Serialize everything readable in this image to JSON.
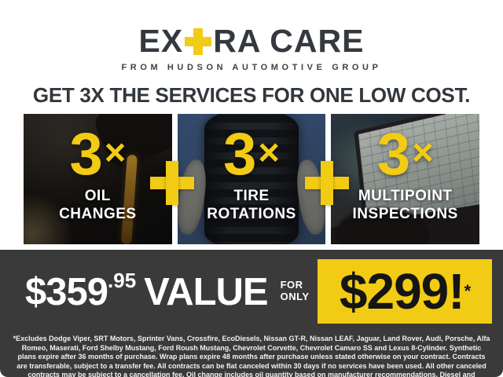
{
  "brand": {
    "logo_prefix": "EX",
    "logo_suffix": "RA CARE",
    "tagline": "FROM HUDSON AUTOMOTIVE GROUP"
  },
  "headline": "GET 3X THE SERVICES FOR ONE LOW COST.",
  "services": [
    {
      "multiplier": "3",
      "times": "×",
      "label_line1": "OIL",
      "label_line2": "CHANGES",
      "photo": "oil-pour"
    },
    {
      "multiplier": "3",
      "times": "×",
      "label_line1": "TIRE",
      "label_line2": "ROTATIONS",
      "photo": "tire-held-by-gloved-hands"
    },
    {
      "multiplier": "3",
      "times": "×",
      "label_line1": "MULTIPOINT",
      "label_line2": "INSPECTIONS",
      "photo": "laptop-inspection-software"
    }
  ],
  "offer": {
    "value_dollars": "$359",
    "value_cents": ".95",
    "value_word": "VALUE",
    "for_line1": "FOR",
    "for_line2": "ONLY",
    "sale_price": "$299!",
    "sale_asterisk": "*"
  },
  "disclaimer": "*Excludes Dodge Viper, SRT Motors, Sprinter Vans, Crossfire, EcoDiesels, Nissan GT-R, Nissan LEAF, Jaguar, Land Rover, Audi, Porsche, Alfa Romeo, Maserati, Ford Shelby Mustang, Ford Roush Mustang, Chevrolet Corvette, Chevrolet Camaro SS and Lexus 8-Cylinder. Synthetic plans expire after 36 months of purchase. Wrap plans expire 48 months after purchase unless stated otherwise on your contract. Contracts are transferable, subject to a transfer fee. All contracts can be flat canceled within 30 days if no services have been used. All other canceled contracts may be subject to a cancellation fee. Oil change includes oil quantity based on manufacturer recommendations. Diesel and synthetic upgrades are extra. See dealer for full details.",
  "colors": {
    "accent_yellow": "#F2CB14",
    "charcoal": "#3A3A3A",
    "text_dark": "#31373D"
  }
}
